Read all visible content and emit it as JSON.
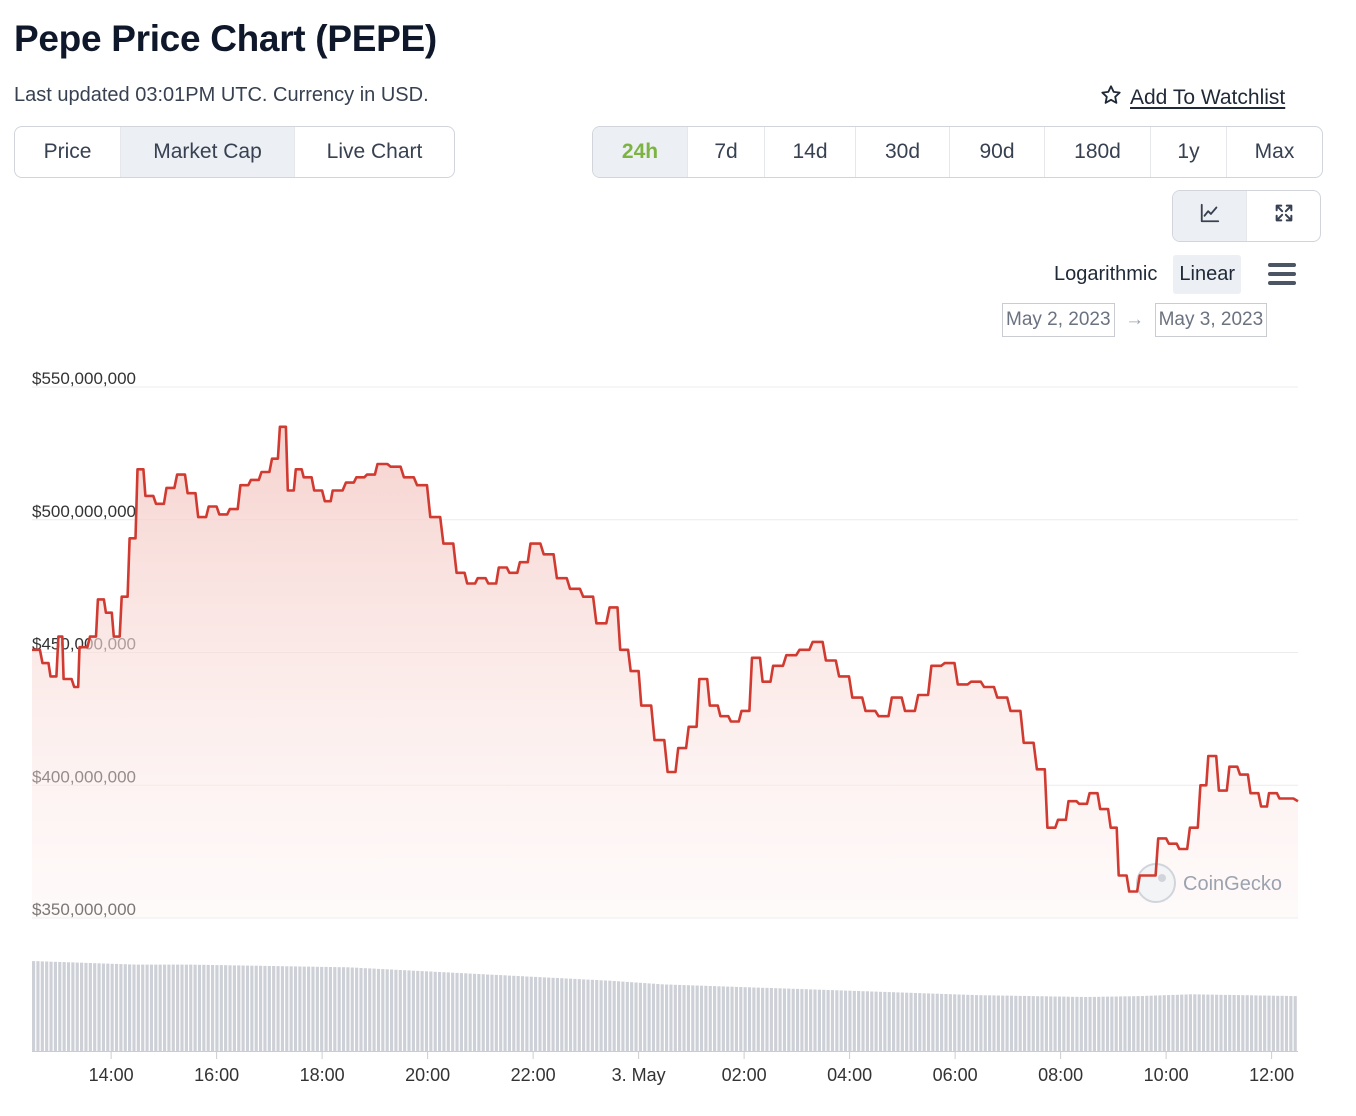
{
  "header": {
    "title": "Pepe Price Chart (PEPE)",
    "subtitle": "Last updated 03:01PM UTC. Currency in USD.",
    "watchlist_label": "Add To Watchlist"
  },
  "chart_type_tabs": [
    {
      "label": "Price",
      "active": false
    },
    {
      "label": "Market Cap",
      "active": true
    },
    {
      "label": "Live Chart",
      "active": false
    }
  ],
  "range_tabs": [
    {
      "label": "24h",
      "active": true
    },
    {
      "label": "7d",
      "active": false
    },
    {
      "label": "14d",
      "active": false
    },
    {
      "label": "30d",
      "active": false
    },
    {
      "label": "90d",
      "active": false
    },
    {
      "label": "180d",
      "active": false
    },
    {
      "label": "1y",
      "active": false
    },
    {
      "label": "Max",
      "active": false
    }
  ],
  "view_buttons": [
    {
      "icon": "line-chart-icon",
      "active": true
    },
    {
      "icon": "expand-icon",
      "active": false
    }
  ],
  "scale_options": [
    {
      "label": "Logarithmic",
      "active": false
    },
    {
      "label": "Linear",
      "active": true
    }
  ],
  "menu_icon": "hamburger-menu-icon",
  "date_range": {
    "from": "May 2, 2023",
    "arrow": "→",
    "to": "May 3, 2023"
  },
  "watermark": "CoinGecko",
  "colors": {
    "line": "#d13a30",
    "area": "#f7d8d5",
    "active_range": "#7cb342",
    "volume": "#cdd0d6"
  },
  "chart_data": {
    "type": "area",
    "yticks": [
      350000000,
      400000000,
      450000000,
      500000000,
      550000000
    ],
    "ytick_labels": [
      "$350,000,000",
      "$400,000,000",
      "$450,000,000",
      "$500,000,000",
      "$550,000,000"
    ],
    "ylim": [
      350000000,
      550000000
    ],
    "xticks": [
      {
        "hour": 14,
        "label": "14:00"
      },
      {
        "hour": 16,
        "label": "16:00"
      },
      {
        "hour": 18,
        "label": "18:00"
      },
      {
        "hour": 20,
        "label": "20:00"
      },
      {
        "hour": 22,
        "label": "22:00"
      },
      {
        "hour": 24,
        "label": "3. May"
      },
      {
        "hour": 26,
        "label": "02:00"
      },
      {
        "hour": 28,
        "label": "04:00"
      },
      {
        "hour": 30,
        "label": "06:00"
      },
      {
        "hour": 32,
        "label": "08:00"
      },
      {
        "hour": 34,
        "label": "10:00"
      },
      {
        "hour": 36,
        "label": "12:00"
      }
    ],
    "xlim": [
      12.5,
      36.5
    ],
    "series": [
      {
        "values": [
          [
            12.5,
            451000000
          ],
          [
            12.7,
            446000000
          ],
          [
            12.85,
            441000000
          ],
          [
            13.0,
            456000000
          ],
          [
            13.1,
            440000000
          ],
          [
            13.3,
            437000000
          ],
          [
            13.4,
            452000000
          ],
          [
            13.6,
            456000000
          ],
          [
            13.75,
            470000000
          ],
          [
            13.9,
            465000000
          ],
          [
            14.05,
            456000000
          ],
          [
            14.2,
            471000000
          ],
          [
            14.35,
            493000000
          ],
          [
            14.5,
            519000000
          ],
          [
            14.65,
            509000000
          ],
          [
            14.85,
            506000000
          ],
          [
            15.05,
            512000000
          ],
          [
            15.25,
            517000000
          ],
          [
            15.45,
            510000000
          ],
          [
            15.65,
            501000000
          ],
          [
            15.85,
            505000000
          ],
          [
            16.05,
            502000000
          ],
          [
            16.25,
            504000000
          ],
          [
            16.45,
            513000000
          ],
          [
            16.65,
            515000000
          ],
          [
            16.85,
            518000000
          ],
          [
            17.05,
            523000000
          ],
          [
            17.2,
            535000000
          ],
          [
            17.35,
            511000000
          ],
          [
            17.5,
            519000000
          ],
          [
            17.65,
            516000000
          ],
          [
            17.85,
            511000000
          ],
          [
            18.05,
            507000000
          ],
          [
            18.2,
            511000000
          ],
          [
            18.45,
            514000000
          ],
          [
            18.65,
            516000000
          ],
          [
            18.85,
            517000000
          ],
          [
            19.05,
            521000000
          ],
          [
            19.3,
            520000000
          ],
          [
            19.55,
            516000000
          ],
          [
            19.8,
            513000000
          ],
          [
            20.05,
            501000000
          ],
          [
            20.3,
            491000000
          ],
          [
            20.55,
            480000000
          ],
          [
            20.75,
            476000000
          ],
          [
            20.95,
            478000000
          ],
          [
            21.15,
            476000000
          ],
          [
            21.35,
            482000000
          ],
          [
            21.55,
            480000000
          ],
          [
            21.75,
            484000000
          ],
          [
            21.95,
            491000000
          ],
          [
            22.2,
            487000000
          ],
          [
            22.45,
            478000000
          ],
          [
            22.7,
            474000000
          ],
          [
            22.95,
            471000000
          ],
          [
            23.2,
            461000000
          ],
          [
            23.45,
            467000000
          ],
          [
            23.65,
            451000000
          ],
          [
            23.85,
            443000000
          ],
          [
            24.05,
            430000000
          ],
          [
            24.3,
            417000000
          ],
          [
            24.55,
            405000000
          ],
          [
            24.75,
            414000000
          ],
          [
            24.95,
            422000000
          ],
          [
            25.15,
            440000000
          ],
          [
            25.35,
            430000000
          ],
          [
            25.55,
            426000000
          ],
          [
            25.75,
            424000000
          ],
          [
            25.95,
            428000000
          ],
          [
            26.15,
            448000000
          ],
          [
            26.35,
            439000000
          ],
          [
            26.55,
            445000000
          ],
          [
            26.8,
            449000000
          ],
          [
            27.05,
            451000000
          ],
          [
            27.3,
            454000000
          ],
          [
            27.55,
            447000000
          ],
          [
            27.8,
            441000000
          ],
          [
            28.05,
            433000000
          ],
          [
            28.3,
            428000000
          ],
          [
            28.55,
            426000000
          ],
          [
            28.8,
            433000000
          ],
          [
            29.05,
            428000000
          ],
          [
            29.3,
            434000000
          ],
          [
            29.55,
            445000000
          ],
          [
            29.8,
            446000000
          ],
          [
            30.05,
            438000000
          ],
          [
            30.3,
            439000000
          ],
          [
            30.55,
            437000000
          ],
          [
            30.8,
            433000000
          ],
          [
            31.05,
            428000000
          ],
          [
            31.3,
            416000000
          ],
          [
            31.55,
            406000000
          ],
          [
            31.75,
            384000000
          ],
          [
            31.95,
            387000000
          ],
          [
            32.15,
            394000000
          ],
          [
            32.35,
            393000000
          ],
          [
            32.55,
            397000000
          ],
          [
            32.75,
            391000000
          ],
          [
            32.95,
            384000000
          ],
          [
            33.1,
            366000000
          ],
          [
            33.3,
            360000000
          ],
          [
            33.5,
            366000000
          ],
          [
            33.65,
            366000000
          ],
          [
            33.85,
            380000000
          ],
          [
            34.05,
            378000000
          ],
          [
            34.25,
            376000000
          ],
          [
            34.45,
            384000000
          ],
          [
            34.65,
            400000000
          ],
          [
            34.8,
            411000000
          ],
          [
            35.0,
            398000000
          ],
          [
            35.2,
            407000000
          ],
          [
            35.4,
            404000000
          ],
          [
            35.6,
            397000000
          ],
          [
            35.8,
            392000000
          ],
          [
            35.95,
            397000000
          ],
          [
            36.15,
            395000000
          ],
          [
            36.5,
            394000000
          ]
        ]
      },
      {
        "values": [
          [
            12.5,
            1.0
          ],
          [
            13.5,
            0.98
          ],
          [
            14.5,
            0.96
          ],
          [
            15.5,
            0.96
          ],
          [
            16.5,
            0.95
          ],
          [
            17.5,
            0.94
          ],
          [
            18.5,
            0.93
          ],
          [
            19.5,
            0.9
          ],
          [
            20.5,
            0.87
          ],
          [
            21.5,
            0.84
          ],
          [
            22.5,
            0.81
          ],
          [
            23.5,
            0.78
          ],
          [
            24.5,
            0.74
          ],
          [
            25.5,
            0.72
          ],
          [
            26.5,
            0.7
          ],
          [
            27.5,
            0.68
          ],
          [
            28.5,
            0.66
          ],
          [
            29.5,
            0.64
          ],
          [
            30.5,
            0.62
          ],
          [
            31.5,
            0.61
          ],
          [
            32.5,
            0.6
          ],
          [
            33.5,
            0.61
          ],
          [
            34.5,
            0.63
          ],
          [
            35.5,
            0.62
          ],
          [
            36.5,
            0.61
          ]
        ]
      }
    ]
  }
}
